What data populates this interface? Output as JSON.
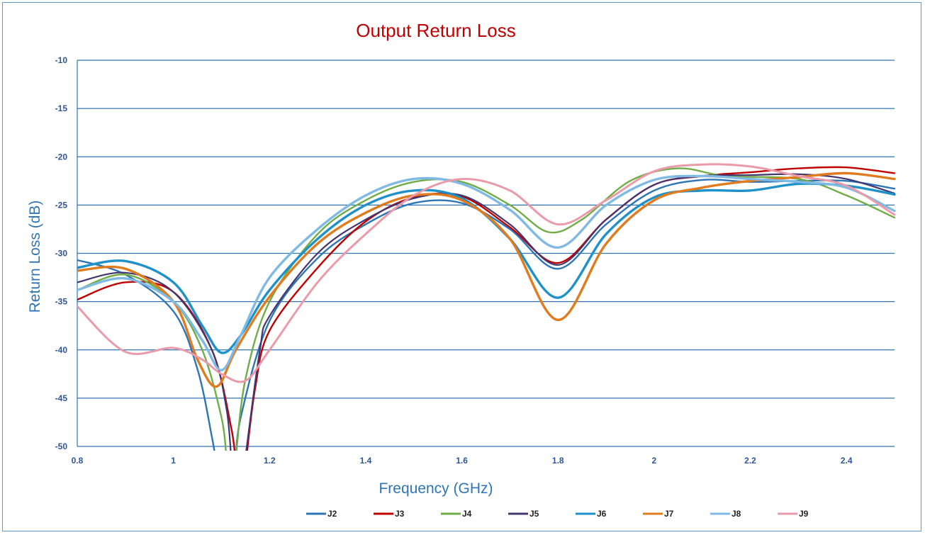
{
  "chart_data": {
    "type": "line",
    "title": "Output Return Loss",
    "xlabel": "Frequency (GHz)",
    "ylabel": "Return Loss (dB)",
    "xlim": [
      0.8,
      2.5
    ],
    "ylim": [
      -50,
      -10
    ],
    "x_ticks": [
      "0.8",
      "1",
      "1.2",
      "1.4",
      "1.6",
      "1.8",
      "2",
      "2.2",
      "2.4"
    ],
    "x_tick_values": [
      0.8,
      1.0,
      1.2,
      1.4,
      1.6,
      1.8,
      2.0,
      2.2,
      2.4
    ],
    "y_ticks": [
      "-10",
      "-15",
      "-20",
      "-25",
      "-30",
      "-35",
      "-40",
      "-45",
      "-50"
    ],
    "y_tick_values": [
      -10,
      -15,
      -20,
      -25,
      -30,
      -35,
      -40,
      -45,
      -50
    ],
    "grid": "horizontal",
    "legend_position": "bottom",
    "colors": {
      "title": "#c00000",
      "axis_title": "#2e75b6",
      "tick": "#2e5597",
      "grid": "#2e75b6",
      "frame": "#5b9bd5"
    },
    "series": [
      {
        "name": "J2",
        "color": "#2e75b6",
        "width": 2.4,
        "points": [
          [
            0.8,
            -30.7
          ],
          [
            0.9,
            -32.2
          ],
          [
            1.0,
            -36
          ],
          [
            1.05,
            -42
          ],
          [
            1.08,
            -49
          ],
          [
            1.09,
            -52
          ]
        ],
        "points2": [
          [
            1.13,
            -52
          ],
          [
            1.14,
            -47
          ],
          [
            1.2,
            -37
          ],
          [
            1.3,
            -30.5
          ],
          [
            1.4,
            -27
          ],
          [
            1.5,
            -24.8
          ],
          [
            1.6,
            -24.8
          ],
          [
            1.7,
            -27.5
          ],
          [
            1.8,
            -31.6
          ],
          [
            1.9,
            -27
          ],
          [
            2.0,
            -23.5
          ],
          [
            2.1,
            -22.4
          ],
          [
            2.2,
            -22.6
          ],
          [
            2.3,
            -22.5
          ],
          [
            2.4,
            -22.5
          ],
          [
            2.5,
            -23.3
          ]
        ]
      },
      {
        "name": "J3",
        "color": "#c00000",
        "width": 2.4,
        "points": [
          [
            0.8,
            -34.8
          ],
          [
            0.9,
            -33
          ],
          [
            1.0,
            -34
          ],
          [
            1.08,
            -40
          ],
          [
            1.12,
            -48
          ],
          [
            1.13,
            -52
          ]
        ],
        "points2": [
          [
            1.15,
            -52
          ],
          [
            1.17,
            -44
          ],
          [
            1.2,
            -38
          ],
          [
            1.3,
            -31.5
          ],
          [
            1.4,
            -26.7
          ],
          [
            1.5,
            -24.2
          ],
          [
            1.6,
            -24.1
          ],
          [
            1.7,
            -27.3
          ],
          [
            1.8,
            -31.0
          ],
          [
            1.9,
            -26.5
          ],
          [
            2.0,
            -22.9
          ],
          [
            2.1,
            -22.0
          ],
          [
            2.2,
            -21.6
          ],
          [
            2.3,
            -21.2
          ],
          [
            2.4,
            -21.1
          ],
          [
            2.5,
            -21.7
          ]
        ]
      },
      {
        "name": "J4",
        "color": "#70ad47",
        "width": 2.4,
        "points": [
          [
            0.8,
            -33.8
          ],
          [
            0.9,
            -32.2
          ],
          [
            1.0,
            -35
          ],
          [
            1.06,
            -40
          ],
          [
            1.1,
            -47
          ],
          [
            1.11,
            -51
          ]
        ],
        "points2": [
          [
            1.13,
            -51
          ],
          [
            1.15,
            -43
          ],
          [
            1.2,
            -35
          ],
          [
            1.3,
            -28
          ],
          [
            1.4,
            -24.5
          ],
          [
            1.5,
            -22.6
          ],
          [
            1.6,
            -22.6
          ],
          [
            1.7,
            -25
          ],
          [
            1.78,
            -27.8
          ],
          [
            1.85,
            -26.5
          ],
          [
            1.95,
            -22.5
          ],
          [
            2.05,
            -21.2
          ],
          [
            2.15,
            -22
          ],
          [
            2.3,
            -22.3
          ],
          [
            2.4,
            -24
          ],
          [
            2.5,
            -26.3
          ]
        ]
      },
      {
        "name": "J5",
        "color": "#44366f",
        "width": 2.2,
        "points": [
          [
            0.8,
            -33
          ],
          [
            0.9,
            -32
          ],
          [
            1.0,
            -34
          ],
          [
            1.08,
            -40
          ],
          [
            1.11,
            -46
          ],
          [
            1.12,
            -51
          ]
        ],
        "points2": [
          [
            1.15,
            -51
          ],
          [
            1.18,
            -40
          ],
          [
            1.2,
            -36.5
          ],
          [
            1.3,
            -30
          ],
          [
            1.4,
            -26.5
          ],
          [
            1.5,
            -24.3
          ],
          [
            1.6,
            -24
          ],
          [
            1.7,
            -27
          ],
          [
            1.8,
            -31.2
          ],
          [
            1.9,
            -26.5
          ],
          [
            2.0,
            -22.9
          ],
          [
            2.1,
            -22.0
          ],
          [
            2.2,
            -21.9
          ],
          [
            2.3,
            -21.8
          ],
          [
            2.4,
            -22.3
          ],
          [
            2.5,
            -23.8
          ]
        ]
      },
      {
        "name": "J6",
        "color": "#1f91c9",
        "width": 3.4,
        "points": [
          [
            0.8,
            -31.5
          ],
          [
            0.9,
            -30.8
          ],
          [
            1.0,
            -33
          ],
          [
            1.06,
            -37.5
          ],
          [
            1.1,
            -40.3
          ],
          [
            1.14,
            -38.5
          ],
          [
            1.2,
            -33.8
          ],
          [
            1.3,
            -28.5
          ],
          [
            1.4,
            -25
          ],
          [
            1.5,
            -23.5
          ],
          [
            1.6,
            -24.3
          ],
          [
            1.7,
            -28.5
          ],
          [
            1.8,
            -34.6
          ],
          [
            1.9,
            -28
          ],
          [
            2.0,
            -24.2
          ],
          [
            2.1,
            -23.5
          ],
          [
            2.2,
            -23.5
          ],
          [
            2.3,
            -22.8
          ],
          [
            2.4,
            -23
          ],
          [
            2.5,
            -23.9
          ]
        ]
      },
      {
        "name": "J7",
        "color": "#e07b1e",
        "width": 3.4,
        "points": [
          [
            0.8,
            -31.8
          ],
          [
            0.9,
            -31.6
          ],
          [
            1.0,
            -35
          ],
          [
            1.05,
            -41
          ],
          [
            1.09,
            -43.8
          ],
          [
            1.13,
            -40
          ],
          [
            1.2,
            -34.5
          ],
          [
            1.3,
            -29
          ],
          [
            1.4,
            -25.8
          ],
          [
            1.5,
            -24
          ],
          [
            1.6,
            -24.5
          ],
          [
            1.7,
            -28.5
          ],
          [
            1.8,
            -36.9
          ],
          [
            1.9,
            -29
          ],
          [
            2.0,
            -24.5
          ],
          [
            2.1,
            -23.2
          ],
          [
            2.2,
            -22.5
          ],
          [
            2.3,
            -22.1
          ],
          [
            2.4,
            -21.7
          ],
          [
            2.5,
            -22.3
          ]
        ]
      },
      {
        "name": "J8",
        "color": "#7fb9e4",
        "width": 3.4,
        "points": [
          [
            0.8,
            -33.8
          ],
          [
            0.9,
            -32.6
          ],
          [
            1.0,
            -35
          ],
          [
            1.06,
            -39
          ],
          [
            1.1,
            -42.1
          ],
          [
            1.14,
            -38.5
          ],
          [
            1.2,
            -32.5
          ],
          [
            1.3,
            -27.5
          ],
          [
            1.4,
            -24
          ],
          [
            1.5,
            -22.3
          ],
          [
            1.6,
            -22.8
          ],
          [
            1.7,
            -25.5
          ],
          [
            1.8,
            -29.4
          ],
          [
            1.9,
            -25
          ],
          [
            2.0,
            -22.4
          ],
          [
            2.1,
            -22.0
          ],
          [
            2.2,
            -22.3
          ],
          [
            2.3,
            -22.6
          ],
          [
            2.4,
            -23.2
          ],
          [
            2.5,
            -25.6
          ]
        ]
      },
      {
        "name": "J9",
        "color": "#eb9aa9",
        "width": 3.0,
        "points": [
          [
            0.8,
            -35.5
          ],
          [
            0.9,
            -40.2
          ],
          [
            1.0,
            -39.8
          ],
          [
            1.06,
            -41
          ],
          [
            1.1,
            -42.5
          ],
          [
            1.15,
            -43.2
          ],
          [
            1.2,
            -40
          ],
          [
            1.3,
            -33
          ],
          [
            1.4,
            -28
          ],
          [
            1.5,
            -24
          ],
          [
            1.6,
            -22.3
          ],
          [
            1.7,
            -23.5
          ],
          [
            1.8,
            -27
          ],
          [
            1.9,
            -24.5
          ],
          [
            2.0,
            -21.5
          ],
          [
            2.1,
            -20.8
          ],
          [
            2.2,
            -21
          ],
          [
            2.3,
            -22
          ],
          [
            2.4,
            -23
          ],
          [
            2.5,
            -26
          ]
        ]
      }
    ]
  }
}
